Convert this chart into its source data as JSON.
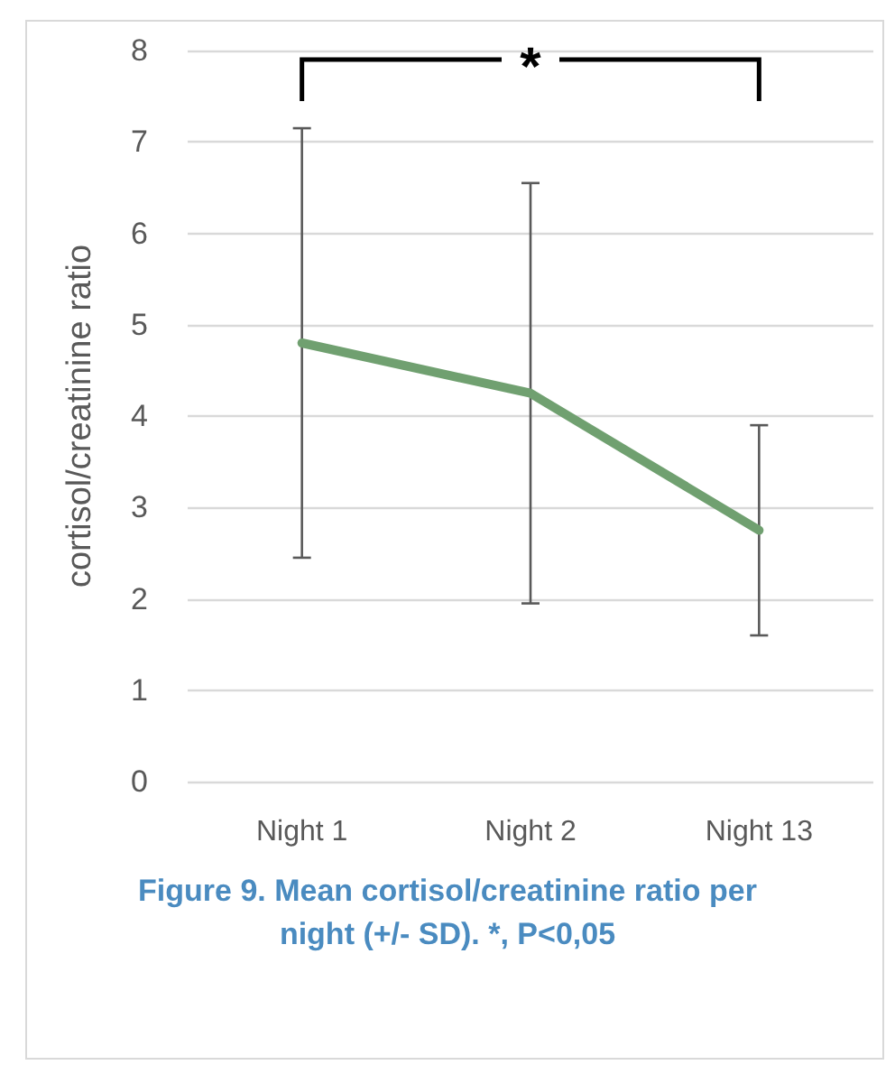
{
  "chart_data": {
    "type": "line",
    "ylabel": "cortisol/creatinine ratio",
    "categories": [
      "Night 1",
      "Night 2",
      "Night 13"
    ],
    "series": [
      {
        "color": "#70a070",
        "values": [
          4.8,
          4.25,
          2.75
        ],
        "errors": [
          [
            2.45,
            7.15
          ],
          [
            1.95,
            6.55
          ],
          [
            1.6,
            3.9
          ]
        ]
      }
    ],
    "ylim": [
      0,
      8
    ],
    "yticks": [
      0,
      1,
      2,
      3,
      4,
      5,
      6,
      7,
      8
    ],
    "grid": "y",
    "marker": "none",
    "line_style": "solid",
    "annotations": [
      "*",
      "Figure 9. Mean cortisol/creatinine ratio per night (+/- SD). *, P<0,05"
    ]
  }
}
